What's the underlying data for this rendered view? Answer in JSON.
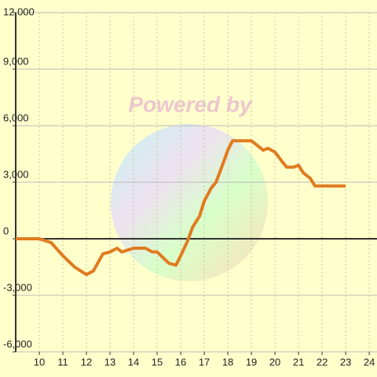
{
  "chart_data": {
    "type": "line",
    "watermark": "Powered by",
    "x": [
      9,
      10,
      10.5,
      11,
      11.5,
      12,
      12.3,
      12.7,
      13,
      13.3,
      13.5,
      14,
      14.5,
      14.8,
      15,
      15.5,
      15.8,
      16,
      16.3,
      16.5,
      16.8,
      17,
      17.3,
      17.5,
      17.8,
      18,
      18.2,
      18.5,
      19,
      19.5,
      19.7,
      20,
      20.3,
      20.5,
      20.8,
      21,
      21.2,
      21.5,
      21.7,
      22,
      22.5,
      23
    ],
    "series": [
      {
        "color": "#e07b20",
        "values": [
          0,
          0,
          -200,
          -900,
          -1500,
          -1900,
          -1700,
          -800,
          -700,
          -500,
          -700,
          -500,
          -500,
          -700,
          -700,
          -1300,
          -1400,
          -900,
          -100,
          600,
          1200,
          2000,
          2700,
          3000,
          4000,
          4700,
          5200,
          5200,
          5200,
          4700,
          4800,
          4600,
          4100,
          3800,
          3800,
          3900,
          3500,
          3200,
          2800,
          2800,
          2800,
          2800
        ]
      }
    ],
    "xlim": [
      9,
      24.33
    ],
    "xticks": [
      10,
      11,
      12,
      13,
      14,
      15,
      16,
      17,
      18,
      19,
      20,
      21,
      22,
      23,
      24
    ],
    "ylim": [
      -6000,
      12000
    ],
    "yticks": [
      {
        "value": -6000,
        "label": "-6,000"
      },
      {
        "value": -3000,
        "label": "-3,000"
      },
      0,
      {
        "value": 3000,
        "label": "3,000"
      },
      {
        "value": 6000,
        "label": "6,000"
      },
      {
        "value": 9000,
        "label": "9,000"
      },
      {
        "value": 12000,
        "label": "12,000"
      }
    ],
    "grid": true
  }
}
